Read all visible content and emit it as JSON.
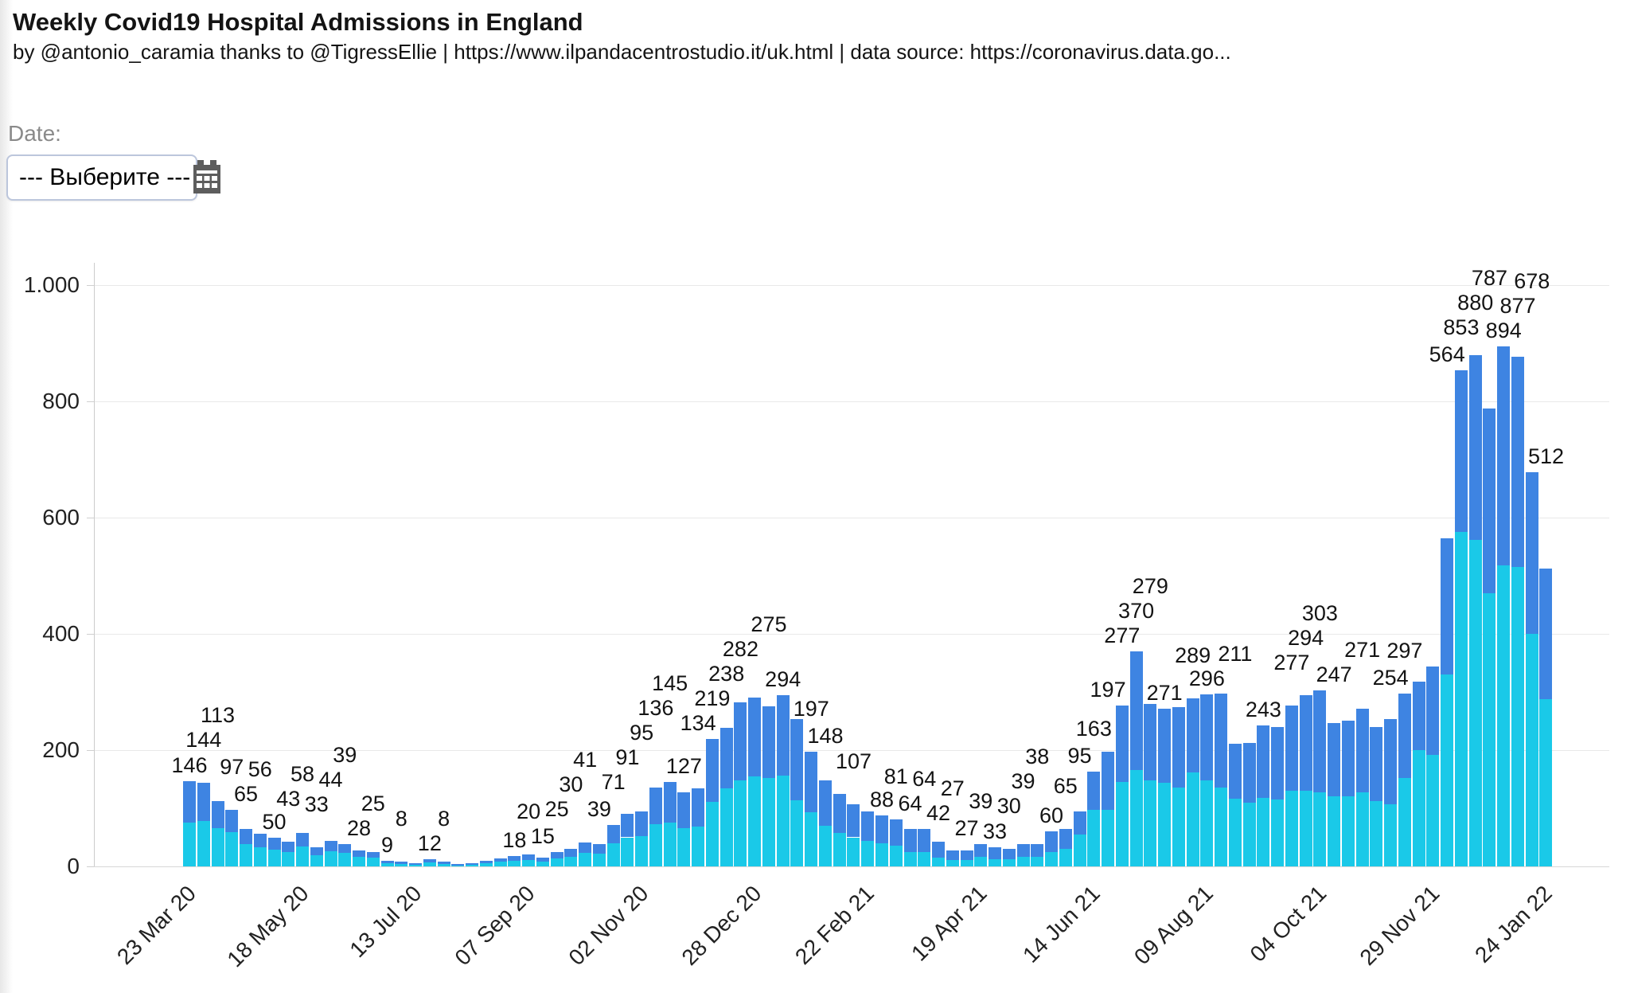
{
  "header": {
    "title": "Weekly Covid19 Hospital Admissions in England",
    "subtitle": "by @antonio_caramia thanks to @TigressEllie | https://www.ilpandacentrostudio.it/uk.html | data source: https://coronavirus.data.go..."
  },
  "date_filter": {
    "label": "Date:",
    "value": "--- Выберите ---",
    "icon": "calendar-icon"
  },
  "colors": {
    "cyan_series": "#1ac9e8",
    "blue_series": "#3e84e2",
    "gridline": "#e9e9e9",
    "axis_text": "#222222",
    "label_text": "#141414"
  },
  "chart_data": {
    "type": "bar",
    "stacked": true,
    "title": "Weekly Covid19 Hospital Admissions in England",
    "xlabel": "",
    "ylabel": "",
    "ylim": [
      0,
      1000
    ],
    "grid": true,
    "legend": "none",
    "y_ticks": [
      {
        "value": 0,
        "label": "0"
      },
      {
        "value": 200,
        "label": "200"
      },
      {
        "value": 400,
        "label": "400"
      },
      {
        "value": 600,
        "label": "600"
      },
      {
        "value": 800,
        "label": "800"
      },
      {
        "value": 1000,
        "label": "1.000"
      }
    ],
    "x_ticks": [
      {
        "bar_index": 0,
        "label": "23 Mar 20"
      },
      {
        "bar_index": 8,
        "label": "18 May 20"
      },
      {
        "bar_index": 16,
        "label": "13 Jul 20"
      },
      {
        "bar_index": 24,
        "label": "07 Sep 20"
      },
      {
        "bar_index": 32,
        "label": "02 Nov 20"
      },
      {
        "bar_index": 40,
        "label": "28 Dec 20"
      },
      {
        "bar_index": 48,
        "label": "22 Feb 21"
      },
      {
        "bar_index": 56,
        "label": "19 Apr 21"
      },
      {
        "bar_index": 64,
        "label": "14 Jun 21"
      },
      {
        "bar_index": 72,
        "label": "09 Aug 21"
      },
      {
        "bar_index": 80,
        "label": "04 Oct 21"
      },
      {
        "bar_index": 88,
        "label": "29 Nov 21"
      },
      {
        "bar_index": 96,
        "label": "24 Jan 22"
      }
    ],
    "totals": [
      146,
      144,
      113,
      97,
      65,
      56,
      50,
      43,
      58,
      33,
      44,
      39,
      28,
      25,
      9,
      8,
      5,
      12,
      8,
      4,
      6,
      10,
      14,
      18,
      20,
      15,
      25,
      30,
      41,
      39,
      71,
      91,
      95,
      136,
      145,
      127,
      134,
      219,
      238,
      282,
      290,
      275,
      294,
      253,
      197,
      148,
      125,
      107,
      95,
      88,
      81,
      64,
      64,
      42,
      27,
      27,
      39,
      33,
      30,
      39,
      38,
      60,
      65,
      95,
      163,
      197,
      277,
      370,
      279,
      271,
      274,
      289,
      296,
      297,
      211,
      212,
      243,
      240,
      277,
      294,
      303,
      247,
      251,
      271,
      240,
      254,
      297,
      318,
      344,
      564,
      853,
      880,
      787,
      894,
      877,
      678,
      512
    ],
    "series": [
      {
        "name": "cyan-segment",
        "color": "#1ac9e8",
        "values": [
          75,
          78,
          66,
          59,
          38,
          33,
          29,
          25,
          34,
          19,
          26,
          23,
          17,
          15,
          5,
          4,
          3,
          7,
          4,
          2,
          3,
          5,
          8,
          10,
          11,
          8,
          14,
          17,
          23,
          22,
          40,
          50,
          52,
          72,
          76,
          66,
          68,
          111,
          134,
          148,
          155,
          152,
          156,
          114,
          93,
          70,
          58,
          50,
          44,
          40,
          36,
          25,
          25,
          15,
          11,
          11,
          16,
          13,
          12,
          16,
          16,
          25,
          30,
          55,
          97,
          97,
          145,
          166,
          148,
          144,
          136,
          162,
          148,
          136,
          116,
          110,
          118,
          115,
          130,
          130,
          128,
          121,
          120,
          127,
          112,
          107,
          152,
          200,
          192,
          330,
          575,
          562,
          470,
          518,
          515,
          400,
          288
        ]
      },
      {
        "name": "blue-segment",
        "color": "#3e84e2",
        "values": [
          71,
          66,
          47,
          38,
          27,
          23,
          21,
          18,
          24,
          14,
          18,
          16,
          11,
          10,
          4,
          4,
          2,
          5,
          4,
          2,
          3,
          5,
          6,
          8,
          9,
          7,
          11,
          13,
          18,
          17,
          31,
          41,
          43,
          64,
          69,
          61,
          66,
          108,
          104,
          134,
          135,
          123,
          138,
          139,
          104,
          78,
          67,
          57,
          51,
          48,
          45,
          39,
          39,
          27,
          16,
          16,
          23,
          20,
          18,
          23,
          22,
          35,
          35,
          40,
          66,
          100,
          132,
          204,
          131,
          127,
          138,
          127,
          148,
          161,
          95,
          102,
          125,
          125,
          147,
          164,
          175,
          126,
          131,
          144,
          128,
          147,
          145,
          118,
          152,
          234,
          278,
          318,
          317,
          376,
          362,
          278,
          224
        ]
      }
    ],
    "bar_labels": [
      "146",
      "144",
      "113",
      "97",
      "65",
      "56",
      "50",
      "43",
      "58",
      "33",
      "44",
      "39",
      "28",
      "25",
      "9",
      "8",
      "",
      "12",
      "8",
      "",
      "",
      "",
      "",
      "18",
      "20",
      "15",
      "25",
      "30",
      "41",
      "39",
      "71",
      "91",
      "95",
      "136",
      "145",
      "127",
      "134",
      "219",
      "238",
      "282",
      "",
      "275",
      "294",
      "",
      "197",
      "148",
      "",
      "107",
      "",
      "88",
      "81",
      "64",
      "64",
      "42",
      "27",
      "27",
      "39",
      "33",
      "30",
      "39",
      "38",
      "60",
      "65",
      "95",
      "163",
      "197",
      "277",
      "370",
      "279",
      "271",
      "",
      "289",
      "296",
      "",
      "211",
      "",
      "243",
      "",
      "277",
      "294",
      "303",
      "247",
      "",
      "271",
      "",
      "254",
      "297",
      "",
      "",
      "564",
      "853",
      "880",
      "787",
      "894",
      "877",
      "678",
      "512"
    ]
  }
}
